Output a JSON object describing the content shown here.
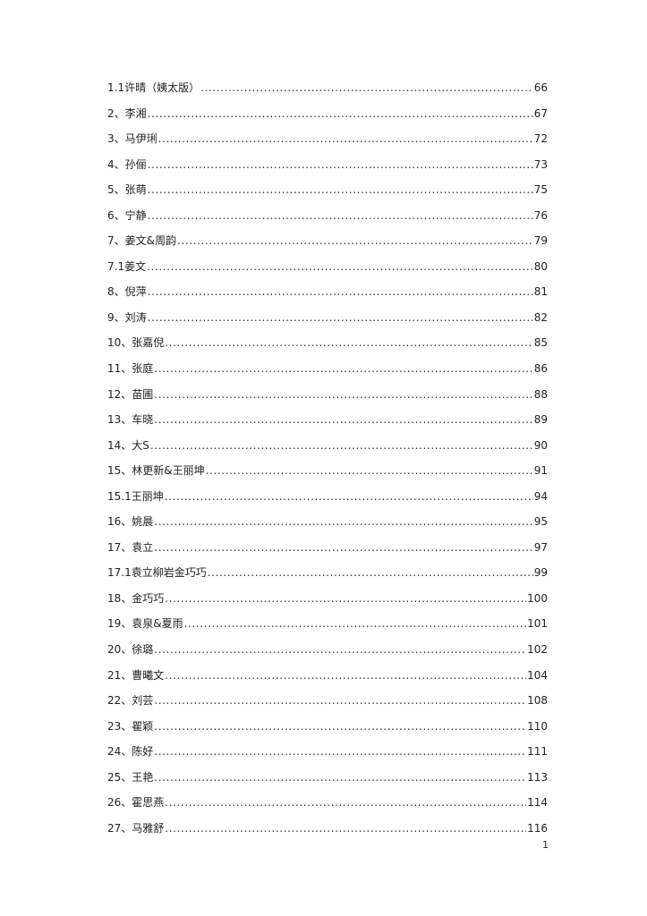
{
  "toc": [
    {
      "title": "1.1许晴（姨太版）",
      "page": "66"
    },
    {
      "title": "2、李湘",
      "page": "67"
    },
    {
      "title": "3、马伊琍",
      "page": "72"
    },
    {
      "title": "4、孙俪",
      "page": "73"
    },
    {
      "title": "5、张萌",
      "page": "75"
    },
    {
      "title": "6、宁静",
      "page": "76"
    },
    {
      "title": "7、姜文&周韵",
      "page": "79"
    },
    {
      "title": "7.1姜文",
      "page": "80"
    },
    {
      "title": "8、倪萍",
      "page": "81"
    },
    {
      "title": "9、刘涛",
      "page": "82"
    },
    {
      "title": "10、张嘉倪",
      "page": "85"
    },
    {
      "title": "11、张庭",
      "page": "86"
    },
    {
      "title": "12、苗圃",
      "page": "88"
    },
    {
      "title": "13、车晓",
      "page": "89"
    },
    {
      "title": "14、大S",
      "page": "90"
    },
    {
      "title": "15、林更新&王丽坤",
      "page": "91"
    },
    {
      "title": "15.1王丽坤",
      "page": "94"
    },
    {
      "title": "16、姚晨",
      "page": "95"
    },
    {
      "title": "17、袁立",
      "page": "97"
    },
    {
      "title": "17.1袁立柳岩金巧巧",
      "page": "99"
    },
    {
      "title": "18、金巧巧",
      "page": "100"
    },
    {
      "title": "19、袁泉&夏雨",
      "page": "101"
    },
    {
      "title": "20、徐璐",
      "page": "102"
    },
    {
      "title": "21、曹曦文",
      "page": "104"
    },
    {
      "title": "22、刘芸",
      "page": "108"
    },
    {
      "title": "23、瞿颖",
      "page": "110"
    },
    {
      "title": "24、陈好",
      "page": "111"
    },
    {
      "title": "25、王艳",
      "page": "113"
    },
    {
      "title": "26、霍思燕",
      "page": "114"
    },
    {
      "title": "27、马雅舒",
      "page": "116"
    }
  ],
  "page_number": "1"
}
